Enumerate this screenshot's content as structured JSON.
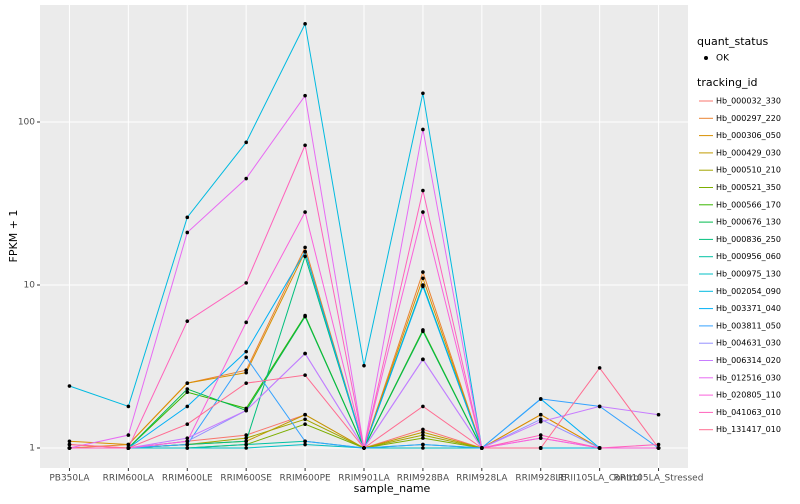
{
  "chart_data": {
    "type": "line",
    "x_label": "sample_name",
    "y_label": "FPKM + 1",
    "log_scale": true,
    "grid": true,
    "ylim": [
      0.754,
      522
    ],
    "yticks": [
      1,
      10,
      100
    ],
    "categories": [
      "PB350LA",
      "RRIM600LA",
      "RRIM600LE",
      "RRIM600SE",
      "RRIM600PE",
      "RRIM901LA",
      "RRIM928BA",
      "RRIM928LA",
      "RRIM928LE",
      "RRII105LA_Control",
      "RRII105LA_Stressed"
    ],
    "point_legend_title": "quant_status",
    "point_legend_label": "OK",
    "legend_title": "tracking_id",
    "legend_position": "right",
    "series": [
      {
        "name": "Hb_000032_330",
        "color": "#F8766D",
        "values": [
          1.05,
          1.0,
          1.1,
          1.2,
          1.6,
          1.0,
          1.3,
          1.0,
          1.0,
          1.0,
          1.0
        ]
      },
      {
        "name": "Hb_000297_220",
        "color": "#EA8331",
        "values": [
          1.0,
          1.05,
          2.5,
          3.0,
          17,
          1.0,
          12,
          1.0,
          1.6,
          1.0,
          1.0
        ]
      },
      {
        "name": "Hb_000306_050",
        "color": "#D89000",
        "values": [
          1.1,
          1.05,
          2.5,
          2.9,
          16,
          1.0,
          11,
          1.0,
          1.6,
          1.0,
          1.0
        ]
      },
      {
        "name": "Hb_000429_030",
        "color": "#C09B00",
        "values": [
          1.0,
          1.0,
          1.05,
          1.1,
          1.6,
          1.0,
          1.25,
          1.0,
          1.0,
          1.0,
          1.0
        ]
      },
      {
        "name": "Hb_000510_210",
        "color": "#A3A500",
        "values": [
          1.0,
          1.0,
          1.05,
          1.15,
          1.5,
          1.0,
          1.2,
          1.0,
          1.0,
          1.0,
          1.0
        ]
      },
      {
        "name": "Hb_000521_350",
        "color": "#7CAE00",
        "values": [
          1.0,
          1.0,
          1.0,
          1.05,
          1.4,
          1.0,
          1.15,
          1.0,
          1.0,
          1.0,
          1.0
        ]
      },
      {
        "name": "Hb_000566_170",
        "color": "#39B600",
        "values": [
          1.0,
          1.0,
          2.2,
          1.75,
          6.5,
          1.0,
          5.3,
          1.0,
          1.0,
          1.0,
          1.0
        ]
      },
      {
        "name": "Hb_000676_130",
        "color": "#00BB4E",
        "values": [
          1.0,
          1.0,
          2.3,
          1.7,
          6.4,
          1.0,
          5.2,
          1.0,
          1.0,
          1.0,
          1.0
        ]
      },
      {
        "name": "Hb_000836_250",
        "color": "#00BF7D",
        "values": [
          1.0,
          1.0,
          1.05,
          1.1,
          15,
          1.0,
          10,
          1.0,
          1.0,
          1.0,
          1.0
        ]
      },
      {
        "name": "Hb_000956_060",
        "color": "#00C1A3",
        "values": [
          1.0,
          1.0,
          1.0,
          1.05,
          1.1,
          1.0,
          1.05,
          1.0,
          1.0,
          1.0,
          1.0
        ]
      },
      {
        "name": "Hb_000975_130",
        "color": "#00BFC4",
        "values": [
          1.0,
          1.0,
          1.0,
          1.0,
          1.05,
          1.0,
          1.0,
          1.0,
          1.0,
          1.0,
          1.0
        ]
      },
      {
        "name": "Hb_002054_090",
        "color": "#00BAE0",
        "values": [
          2.4,
          1.8,
          26,
          75,
          400,
          3.2,
          150,
          1.0,
          1.0,
          1.0,
          1.0
        ]
      },
      {
        "name": "Hb_003371_040",
        "color": "#00B0F6",
        "values": [
          1.0,
          1.0,
          1.8,
          3.9,
          16,
          1.0,
          9.8,
          1.0,
          2.0,
          1.0,
          1.0
        ]
      },
      {
        "name": "Hb_003811_050",
        "color": "#35A2FF",
        "values": [
          1.0,
          1.0,
          1.05,
          3.6,
          1.1,
          1.0,
          1.05,
          1.0,
          2.0,
          1.8,
          1.0
        ]
      },
      {
        "name": "Hb_004631_030",
        "color": "#9590FF",
        "values": [
          1.0,
          1.0,
          1.1,
          1.7,
          3.8,
          1.0,
          3.5,
          1.0,
          1.5,
          1.0,
          1.0
        ]
      },
      {
        "name": "Hb_006314_020",
        "color": "#C77CFF",
        "values": [
          1.0,
          1.0,
          1.15,
          1.7,
          3.8,
          1.0,
          3.5,
          1.0,
          1.45,
          1.8,
          1.6
        ]
      },
      {
        "name": "Hb_012516_030",
        "color": "#E76BF3",
        "values": [
          1.0,
          1.2,
          21,
          45,
          145,
          1.0,
          90,
          1.0,
          1.15,
          1.0,
          1.0
        ]
      },
      {
        "name": "Hb_020805_110",
        "color": "#FA62DB",
        "values": [
          1.0,
          1.0,
          1.1,
          5.9,
          28,
          1.0,
          28,
          1.0,
          1.15,
          1.0,
          1.0
        ]
      },
      {
        "name": "Hb_041063_010",
        "color": "#FF62BC",
        "values": [
          1.0,
          1.0,
          6.0,
          10.3,
          72,
          1.0,
          38,
          1.0,
          1.2,
          1.0,
          1.05
        ]
      },
      {
        "name": "Hb_131417_010",
        "color": "#FF6C91",
        "values": [
          1.05,
          1.0,
          1.4,
          2.5,
          2.8,
          1.0,
          1.8,
          1.0,
          1.0,
          3.1,
          1.0
        ]
      }
    ]
  }
}
